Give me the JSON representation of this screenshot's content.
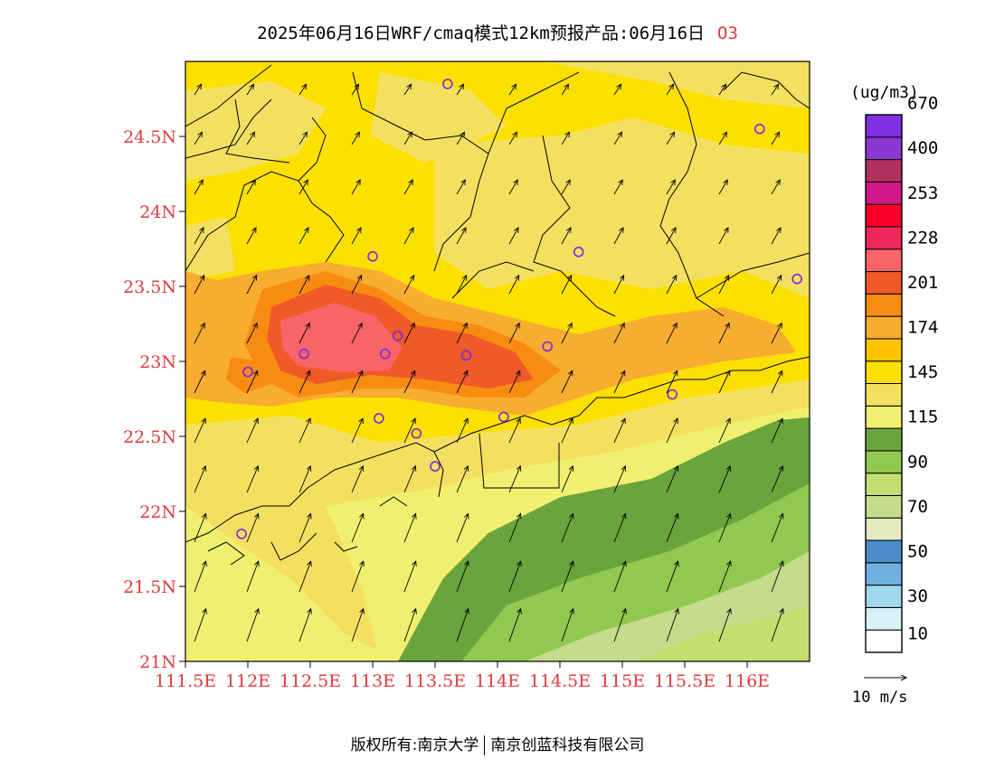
{
  "title": {
    "main": "2025年06月16日WRF/cmaq模式12km预报产品:06月16日",
    "species": "O3"
  },
  "map": {
    "lon_ticks": [
      "111.5E",
      "112E",
      "112.5E",
      "113E",
      "113.5E",
      "114E",
      "114.5E",
      "115E",
      "115.5E",
      "116E"
    ],
    "lat_ticks": [
      "21N",
      "21.5N",
      "22N",
      "22.5N",
      "23N",
      "23.5N",
      "24N",
      "24.5N"
    ],
    "tick_color": "#e03c3c",
    "lon_range": [
      111.5,
      116.5
    ],
    "lat_range": [
      21.0,
      25.0
    ],
    "stations": [
      {
        "lon": 113.6,
        "lat": 24.85
      },
      {
        "lon": 116.1,
        "lat": 24.55
      },
      {
        "lon": 113.0,
        "lat": 23.7
      },
      {
        "lon": 114.65,
        "lat": 23.73
      },
      {
        "lon": 116.4,
        "lat": 23.55
      },
      {
        "lon": 112.45,
        "lat": 23.05
      },
      {
        "lon": 112.0,
        "lat": 22.93
      },
      {
        "lon": 113.1,
        "lat": 23.05
      },
      {
        "lon": 113.2,
        "lat": 23.17
      },
      {
        "lon": 113.75,
        "lat": 23.04
      },
      {
        "lon": 114.4,
        "lat": 23.1
      },
      {
        "lon": 113.05,
        "lat": 22.62
      },
      {
        "lon": 113.35,
        "lat": 22.52
      },
      {
        "lon": 113.5,
        "lat": 22.3
      },
      {
        "lon": 114.05,
        "lat": 22.63
      },
      {
        "lon": 115.4,
        "lat": 22.78
      },
      {
        "lon": 111.95,
        "lat": 21.85
      }
    ]
  },
  "colorbar": {
    "unit": "(ug/m3)",
    "colors": [
      "#ffffff",
      "#d8f0f8",
      "#a0d8f0",
      "#70b0e0",
      "#4a8cc8",
      "#e2ecc0",
      "#c4dc8c",
      "#c2e070",
      "#90c850",
      "#6aa43c",
      "#f0f070",
      "#f4e060",
      "#fce000",
      "#fcc400",
      "#f8ac30",
      "#f88c10",
      "#f05a28",
      "#f86468",
      "#f0285a",
      "#f80028",
      "#d01888",
      "#b03060",
      "#8c38d0",
      "#8030e0"
    ],
    "labels": [
      "10",
      "30",
      "50",
      "70",
      "90",
      "115",
      "145",
      "174",
      "201",
      "228",
      "253",
      "400",
      "670"
    ]
  },
  "wind": {
    "reference_label": "10 m/s"
  },
  "footer": {
    "left": "版权所有:南京大学",
    "right": "南京创蓝科技有限公司"
  }
}
